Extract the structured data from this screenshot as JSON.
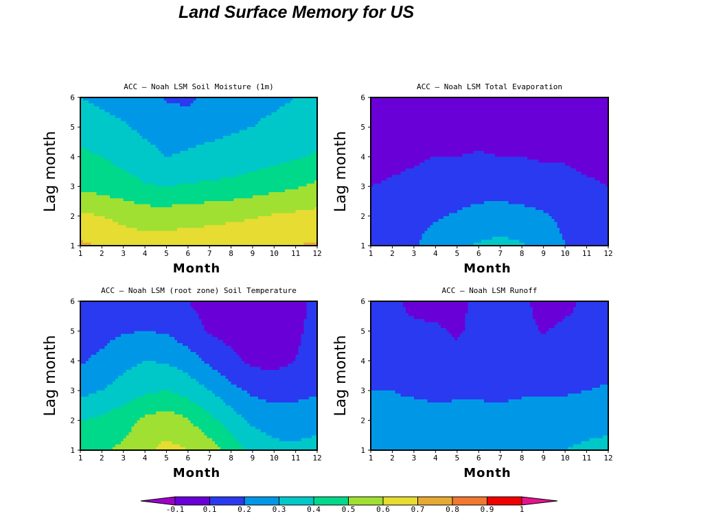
{
  "page": {
    "title": "Land Surface Memory for US"
  },
  "colorbar": {
    "labels": [
      "-0.1",
      "0.1",
      "0.2",
      "0.3",
      "0.4",
      "0.5",
      "0.6",
      "0.7",
      "0.8",
      "0.9",
      "1"
    ],
    "colors": [
      "#6a00d8",
      "#2a3af0",
      "#0098e6",
      "#00c8c8",
      "#00d88a",
      "#a0e032",
      "#e6dc32",
      "#e6aa32",
      "#f07830",
      "#f00000"
    ],
    "under_color": "#a000c8",
    "over_color": "#e6148c"
  },
  "chart_data": [
    {
      "type": "heatmap",
      "title": "ACC – Noah LSM Soil Moisture (1m)",
      "xlabel": "Month",
      "ylabel": "Lag month",
      "x": [
        1,
        2,
        3,
        4,
        5,
        6,
        7,
        8,
        9,
        10,
        11,
        12
      ],
      "y": [
        1,
        2,
        3,
        4,
        5,
        6
      ],
      "xlim": [
        1,
        12
      ],
      "ylim": [
        1,
        6
      ],
      "levels": [
        -0.1,
        0.1,
        0.2,
        0.3,
        0.4,
        0.5,
        0.6,
        0.7,
        0.8,
        0.9,
        1
      ],
      "values": [
        [
          0.72,
          0.69,
          0.66,
          0.65,
          0.65,
          0.66,
          0.66,
          0.67,
          0.68,
          0.69,
          0.7,
          0.71
        ],
        [
          0.62,
          0.6,
          0.57,
          0.55,
          0.55,
          0.56,
          0.57,
          0.58,
          0.59,
          0.61,
          0.62,
          0.63
        ],
        [
          0.48,
          0.46,
          0.44,
          0.41,
          0.4,
          0.41,
          0.42,
          0.43,
          0.45,
          0.47,
          0.49,
          0.52
        ],
        [
          0.42,
          0.4,
          0.37,
          0.33,
          0.3,
          0.31,
          0.32,
          0.33,
          0.35,
          0.37,
          0.39,
          0.41
        ],
        [
          0.36,
          0.33,
          0.31,
          0.28,
          0.26,
          0.27,
          0.28,
          0.29,
          0.3,
          0.32,
          0.34,
          0.36
        ],
        [
          0.3,
          0.28,
          0.26,
          0.23,
          0.19,
          0.17,
          0.24,
          0.26,
          0.27,
          0.28,
          0.3,
          0.32
        ]
      ]
    },
    {
      "type": "heatmap",
      "title": "ACC – Noah LSM Total Evaporation",
      "xlabel": "Month",
      "ylabel": "Lag month",
      "x": [
        1,
        2,
        3,
        4,
        5,
        6,
        7,
        8,
        9,
        10,
        11,
        12
      ],
      "y": [
        1,
        2,
        3,
        4,
        5,
        6
      ],
      "xlim": [
        1,
        12
      ],
      "ylim": [
        1,
        6
      ],
      "levels": [
        -0.1,
        0.1,
        0.2,
        0.3,
        0.4,
        0.5,
        0.6,
        0.7,
        0.8,
        0.9,
        1
      ],
      "values": [
        [
          0.12,
          0.15,
          0.19,
          0.24,
          0.28,
          0.31,
          0.33,
          0.31,
          0.26,
          0.2,
          0.15,
          0.12
        ],
        [
          0.12,
          0.14,
          0.17,
          0.19,
          0.21,
          0.23,
          0.24,
          0.23,
          0.21,
          0.18,
          0.15,
          0.13
        ],
        [
          0.1,
          0.11,
          0.12,
          0.14,
          0.15,
          0.16,
          0.16,
          0.15,
          0.14,
          0.13,
          0.11,
          0.1
        ],
        [
          0.07,
          0.08,
          0.09,
          0.1,
          0.1,
          0.11,
          0.1,
          0.1,
          0.09,
          0.09,
          0.08,
          0.08
        ],
        [
          0.05,
          0.05,
          0.05,
          0.06,
          0.06,
          0.06,
          0.06,
          0.06,
          0.06,
          0.06,
          0.05,
          0.05
        ],
        [
          0.04,
          0.04,
          0.04,
          0.04,
          0.04,
          0.04,
          0.04,
          0.04,
          0.04,
          0.04,
          0.04,
          0.04
        ]
      ]
    },
    {
      "type": "heatmap",
      "title": "ACC – Noah LSM (root zone) Soil Temperature",
      "xlabel": "Month",
      "ylabel": "Lag month",
      "x": [
        1,
        2,
        3,
        4,
        5,
        6,
        7,
        8,
        9,
        10,
        11,
        12
      ],
      "y": [
        1,
        2,
        3,
        4,
        5,
        6
      ],
      "xlim": [
        1,
        12
      ],
      "ylim": [
        1,
        6
      ],
      "levels": [
        -0.1,
        0.1,
        0.2,
        0.3,
        0.4,
        0.5,
        0.6,
        0.7,
        0.8,
        0.9,
        1
      ],
      "values": [
        [
          0.48,
          0.49,
          0.52,
          0.58,
          0.63,
          0.6,
          0.55,
          0.45,
          0.37,
          0.33,
          0.32,
          0.34
        ],
        [
          0.4,
          0.42,
          0.46,
          0.52,
          0.55,
          0.51,
          0.43,
          0.35,
          0.28,
          0.25,
          0.25,
          0.26
        ],
        [
          0.27,
          0.3,
          0.34,
          0.38,
          0.4,
          0.36,
          0.3,
          0.23,
          0.18,
          0.16,
          0.17,
          0.19
        ],
        [
          0.19,
          0.22,
          0.27,
          0.3,
          0.29,
          0.25,
          0.18,
          0.12,
          0.08,
          0.07,
          0.1,
          0.15
        ],
        [
          0.15,
          0.17,
          0.19,
          0.2,
          0.19,
          0.14,
          0.09,
          0.07,
          0.06,
          0.06,
          0.08,
          0.14
        ],
        [
          0.14,
          0.15,
          0.16,
          0.16,
          0.15,
          0.1,
          0.07,
          0.05,
          0.04,
          0.04,
          0.06,
          0.13
        ]
      ]
    },
    {
      "type": "heatmap",
      "title": "ACC – Noah LSM Runoff",
      "xlabel": "Month",
      "ylabel": "Lag month",
      "x": [
        1,
        2,
        3,
        4,
        5,
        6,
        7,
        8,
        9,
        10,
        11,
        12
      ],
      "y": [
        1,
        2,
        3,
        4,
        5,
        6
      ],
      "xlim": [
        1,
        12
      ],
      "ylim": [
        1,
        6
      ],
      "levels": [
        -0.1,
        0.1,
        0.2,
        0.3,
        0.4,
        0.5,
        0.6,
        0.7,
        0.8,
        0.9,
        1
      ],
      "values": [
        [
          0.25,
          0.26,
          0.28,
          0.29,
          0.3,
          0.3,
          0.28,
          0.27,
          0.28,
          0.3,
          0.32,
          0.33
        ],
        [
          0.22,
          0.22,
          0.23,
          0.23,
          0.24,
          0.24,
          0.23,
          0.23,
          0.24,
          0.25,
          0.26,
          0.27
        ],
        [
          0.2,
          0.2,
          0.19,
          0.18,
          0.18,
          0.18,
          0.18,
          0.19,
          0.19,
          0.19,
          0.2,
          0.21
        ],
        [
          0.17,
          0.16,
          0.15,
          0.15,
          0.15,
          0.15,
          0.15,
          0.15,
          0.15,
          0.16,
          0.16,
          0.17
        ],
        [
          0.15,
          0.14,
          0.13,
          0.12,
          0.08,
          0.14,
          0.14,
          0.14,
          0.09,
          0.13,
          0.14,
          0.15
        ],
        [
          0.14,
          0.13,
          0.06,
          0.05,
          0.07,
          0.13,
          0.13,
          0.13,
          0.05,
          0.06,
          0.13,
          0.14
        ]
      ]
    }
  ]
}
